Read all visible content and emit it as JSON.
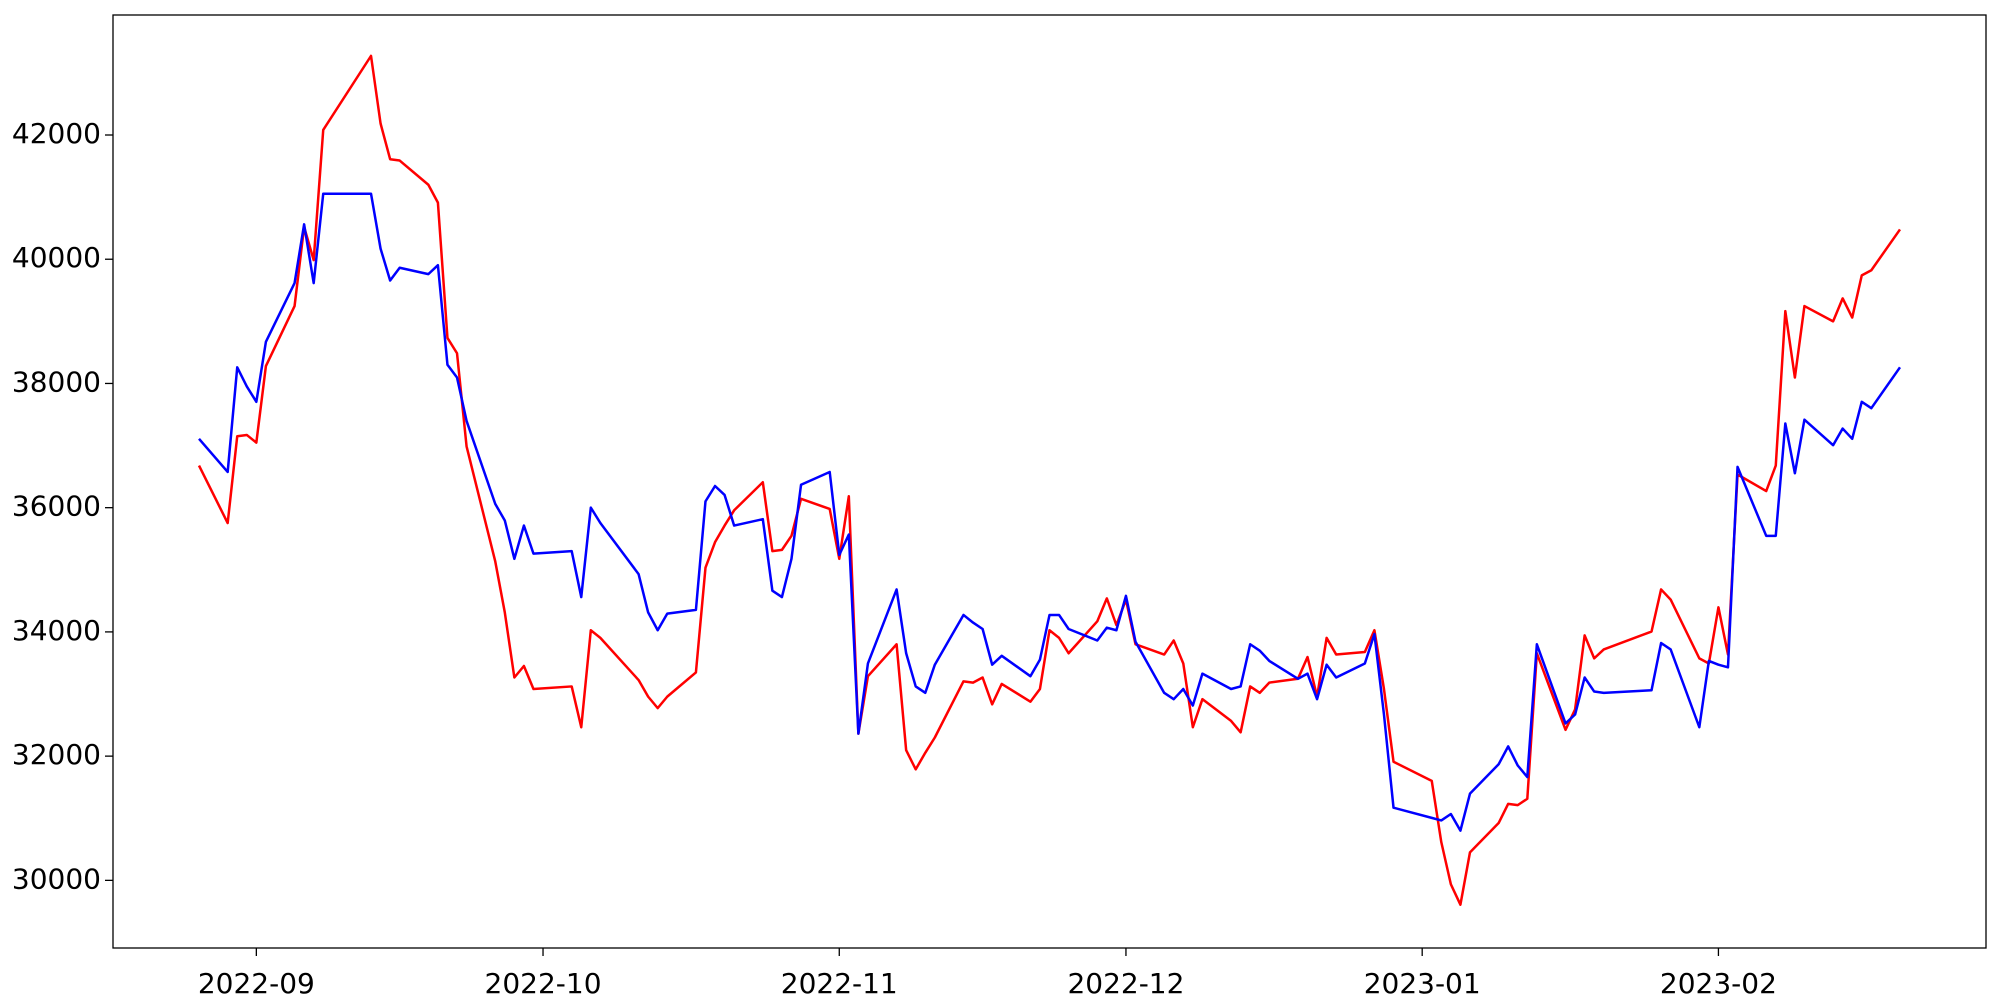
{
  "chart_data": {
    "type": "line",
    "x": [
      "2022-08-26",
      "2022-08-29",
      "2022-08-30",
      "2022-08-31",
      "2022-09-01",
      "2022-09-02",
      "2022-09-05",
      "2022-09-06",
      "2022-09-07",
      "2022-09-08",
      "2022-09-13",
      "2022-09-14",
      "2022-09-15",
      "2022-09-16",
      "2022-09-19",
      "2022-09-20",
      "2022-09-21",
      "2022-09-22",
      "2022-09-23",
      "2022-09-26",
      "2022-09-27",
      "2022-09-28",
      "2022-09-29",
      "2022-09-30",
      "2022-10-04",
      "2022-10-05",
      "2022-10-06",
      "2022-10-07",
      "2022-10-11",
      "2022-10-12",
      "2022-10-13",
      "2022-10-14",
      "2022-10-17",
      "2022-10-18",
      "2022-10-19",
      "2022-10-20",
      "2022-10-21",
      "2022-10-24",
      "2022-10-25",
      "2022-10-26",
      "2022-10-27",
      "2022-10-28",
      "2022-10-31",
      "2022-11-01",
      "2022-11-02",
      "2022-11-03",
      "2022-11-04",
      "2022-11-07",
      "2022-11-08",
      "2022-11-09",
      "2022-11-10",
      "2022-11-11",
      "2022-11-14",
      "2022-11-15",
      "2022-11-16",
      "2022-11-17",
      "2022-11-18",
      "2022-11-21",
      "2022-11-22",
      "2022-11-23",
      "2022-11-24",
      "2022-11-25",
      "2022-11-28",
      "2022-11-29",
      "2022-11-30",
      "2022-12-01",
      "2022-12-02",
      "2022-12-05",
      "2022-12-06",
      "2022-12-07",
      "2022-12-08",
      "2022-12-09",
      "2022-12-12",
      "2022-12-13",
      "2022-12-14",
      "2022-12-15",
      "2022-12-16",
      "2022-12-19",
      "2022-12-20",
      "2022-12-21",
      "2022-12-22",
      "2022-12-23",
      "2022-12-26",
      "2022-12-27",
      "2022-12-28",
      "2022-12-29",
      "2023-01-02",
      "2023-01-03",
      "2023-01-04",
      "2023-01-05",
      "2023-01-06",
      "2023-01-09",
      "2023-01-10",
      "2023-01-11",
      "2023-01-12",
      "2023-01-13",
      "2023-01-16",
      "2023-01-17",
      "2023-01-18",
      "2023-01-19",
      "2023-01-20",
      "2023-01-25",
      "2023-01-26",
      "2023-01-27",
      "2023-01-30",
      "2023-01-31",
      "2023-02-01",
      "2023-02-02",
      "2023-02-03",
      "2023-02-06",
      "2023-02-07",
      "2023-02-08",
      "2023-02-09",
      "2023-02-10",
      "2023-02-13",
      "2023-02-14",
      "2023-02-15",
      "2023-02-16",
      "2023-02-17",
      "2023-02-20"
    ],
    "series": [
      {
        "color": "#ff0000",
        "values": [
          36678,
          35753,
          37150,
          37171,
          37047,
          38280,
          39246,
          40520,
          39986,
          42082,
          43274,
          42185,
          41610,
          41589,
          41199,
          40911,
          38733,
          38486,
          36986,
          35136,
          34314,
          33266,
          33451,
          33081,
          33122,
          32465,
          34027,
          33904,
          33225,
          32958,
          32773,
          32958,
          33348,
          35033,
          35445,
          35712,
          35958,
          36410,
          35301,
          35321,
          35547,
          36143,
          35979,
          35177,
          36184,
          32362,
          33287,
          33801,
          32095,
          31787,
          32054,
          32300,
          33204,
          33184,
          33266,
          32834,
          33163,
          32876,
          33081,
          34027,
          33904,
          33656,
          34170,
          34540,
          34109,
          34520,
          33801,
          33636,
          33862,
          33492,
          32465,
          32917,
          32567,
          32383,
          33122,
          33019,
          33184,
          33245,
          33595,
          32958,
          33904,
          33636,
          33677,
          34027,
          33081,
          31910,
          31602,
          30615,
          29937,
          29608,
          30451,
          30923,
          31232,
          31211,
          31314,
          33656,
          32424,
          32752,
          33944,
          33574,
          33718,
          34006,
          34684,
          34520,
          33574,
          33492,
          34396,
          33636,
          36534,
          36267,
          36678,
          39164,
          38095,
          39246,
          39000,
          39370,
          39061,
          39740,
          39822,
          40480
        ]
      },
      {
        "color": "#0000ff",
        "values": [
          37109,
          36575,
          38260,
          37952,
          37705,
          38671,
          39616,
          40562,
          39616,
          41055,
          41055,
          40171,
          39657,
          39863,
          39760,
          39904,
          38301,
          38095,
          37397,
          36061,
          35794,
          35177,
          35712,
          35260,
          35301,
          34561,
          36001,
          35753,
          34931,
          34314,
          34027,
          34294,
          34355,
          36102,
          36349,
          36205,
          35712,
          35815,
          34664,
          34561,
          35177,
          36369,
          36575,
          35239,
          35568,
          32362,
          33492,
          34684,
          33656,
          33122,
          33019,
          33472,
          34273,
          34150,
          34047,
          33472,
          33615,
          33287,
          33554,
          34273,
          34273,
          34047,
          33862,
          34068,
          34027,
          34581,
          33842,
          33019,
          32917,
          33081,
          32814,
          33328,
          33081,
          33122,
          33801,
          33698,
          33533,
          33245,
          33328,
          32917,
          33472,
          33266,
          33492,
          33965,
          32670,
          31170,
          31006,
          30965,
          31068,
          30800,
          31396,
          31869,
          32157,
          31849,
          31663,
          33801,
          32527,
          32670,
          33266,
          33040,
          33019,
          33060,
          33821,
          33718,
          32465,
          33533,
          33472,
          33430,
          36657,
          35547,
          35547,
          37356,
          36554,
          37417,
          37006,
          37274,
          37109,
          37705,
          37602,
          38260
        ]
      }
    ],
    "xlim": [
      "2022-08-17",
      "2023-03-01"
    ],
    "xticks": [
      {
        "value": "2022-09-01",
        "label": "2022-09"
      },
      {
        "value": "2022-10-01",
        "label": "2022-10"
      },
      {
        "value": "2022-11-01",
        "label": "2022-11"
      },
      {
        "value": "2022-12-01",
        "label": "2022-12"
      },
      {
        "value": "2023-01-01",
        "label": "2023-01"
      },
      {
        "value": "2023-02-01",
        "label": "2023-02"
      }
    ],
    "ylim": [
      28911,
      43932
    ],
    "yticks": [
      30000,
      32000,
      34000,
      36000,
      38000,
      40000,
      42000
    ],
    "grid": false
  }
}
